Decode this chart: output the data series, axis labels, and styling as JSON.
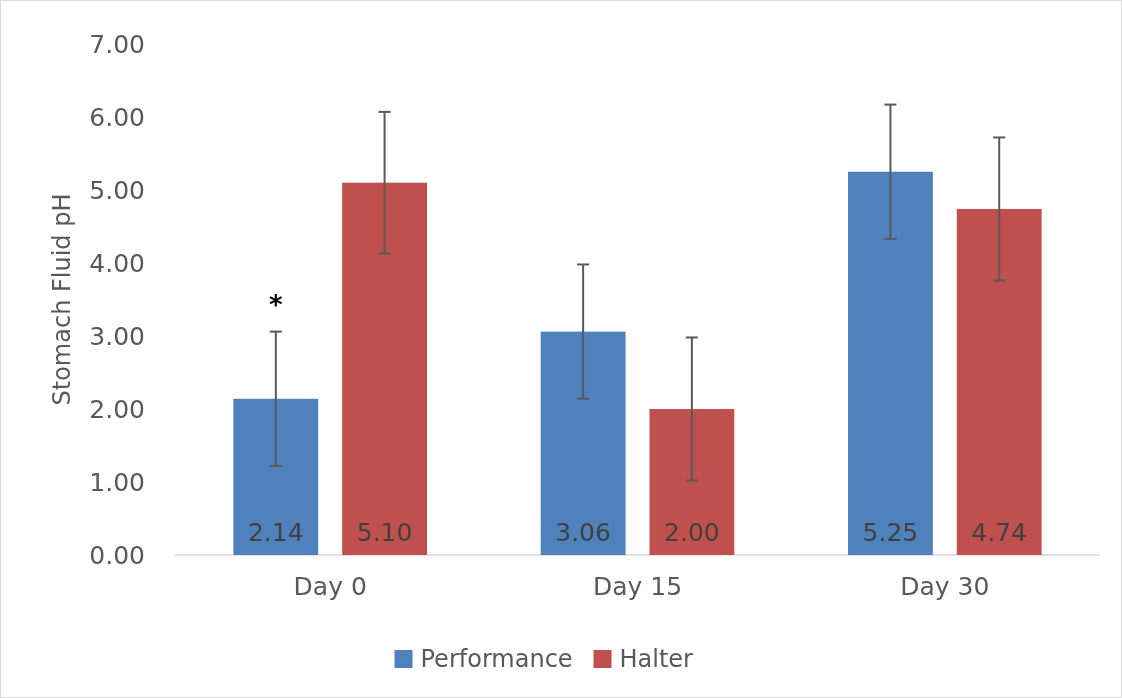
{
  "chart_data": {
    "type": "bar",
    "ylabel": "Stomach Fluid pH",
    "categories": [
      "Day 0",
      "Day 15",
      "Day 30"
    ],
    "series": [
      {
        "name": "Performance",
        "color": "#4f81bd",
        "values": [
          2.14,
          3.06,
          5.25
        ],
        "value_labels": [
          "2.14",
          "3.06",
          "5.25"
        ],
        "errors": [
          0.92,
          0.92,
          0.92
        ]
      },
      {
        "name": "Halter",
        "color": "#c0504d",
        "values": [
          5.1,
          2.0,
          4.74
        ],
        "value_labels": [
          "5.10",
          "2.00",
          "4.74"
        ],
        "errors": [
          0.97,
          0.98,
          0.98
        ]
      }
    ],
    "ylim": [
      0,
      7
    ],
    "yticks": [
      {
        "value": 0,
        "label": "0.00"
      },
      {
        "value": 1,
        "label": "1.00"
      },
      {
        "value": 2,
        "label": "2.00"
      },
      {
        "value": 3,
        "label": "3.00"
      },
      {
        "value": 4,
        "label": "4.00"
      },
      {
        "value": 5,
        "label": "5.00"
      },
      {
        "value": 6,
        "label": "6.00"
      },
      {
        "value": 7,
        "label": "7.00"
      }
    ],
    "legend": "bottom",
    "annotations": [
      "*"
    ]
  }
}
